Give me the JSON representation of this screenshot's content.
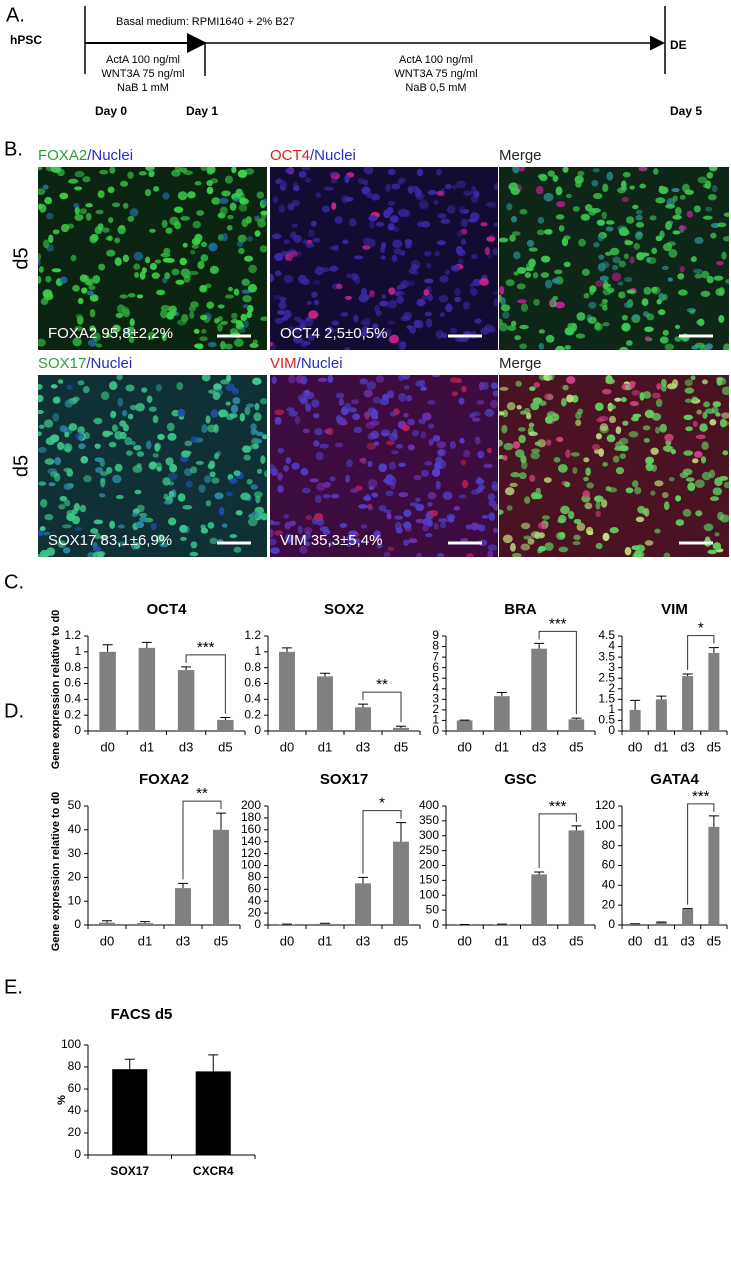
{
  "panel_a": {
    "label": "A.",
    "start": "hPSC",
    "end": "DE",
    "medium": "Basal medium: RPMI1640 + 2% B27",
    "phase_1": [
      "ActA 100 ng/ml",
      "WNT3A 75 ng/ml",
      "NaB 1 mM"
    ],
    "phase_2": [
      "ActA 100 ng/ml",
      "WNT3A 75 ng/ml",
      "NaB 0,5 mM"
    ],
    "days": [
      "Day 0",
      "Day 1",
      "Day 5"
    ]
  },
  "panel_b": {
    "label": "B.",
    "rows": [
      {
        "row_label": "d5",
        "images": [
          {
            "title": [
              {
                "text": "FOXA2",
                "color": "#2e9e3a"
              },
              {
                "text": "/Nuclei",
                "color": "#2b2bbf"
              }
            ],
            "caption": "FOXA2 95,8±2,2%"
          },
          {
            "title": [
              {
                "text": "OCT4",
                "color": "#e02020"
              },
              {
                "text": "/Nuclei",
                "color": "#2b2bbf"
              }
            ],
            "caption": "OCT4 2,5±0,5%"
          },
          {
            "title": [
              {
                "text": "Merge",
                "color": "#222222"
              }
            ]
          }
        ]
      },
      {
        "row_label": "d5",
        "images": [
          {
            "title": [
              {
                "text": "SOX17",
                "color": "#2e9e3a"
              },
              {
                "text": "/Nuclei",
                "color": "#2b2bbf"
              }
            ],
            "caption": "SOX17 83,1±6,9%"
          },
          {
            "title": [
              {
                "text": "VIM",
                "color": "#e02020"
              },
              {
                "text": "/Nuclei",
                "color": "#2b2bbf"
              }
            ],
            "caption": "VIM 35,3±5,4%"
          },
          {
            "title": [
              {
                "text": "Merge",
                "color": "#222222"
              }
            ]
          }
        ]
      }
    ]
  },
  "panel_labels": {
    "c": "C.",
    "d": "D.",
    "e": "E."
  },
  "chart_data": [
    {
      "type": "bar",
      "title": "OCT4",
      "ylabel": "Gene expression relative to d0",
      "categories": [
        "d0",
        "d1",
        "d3",
        "d5"
      ],
      "values": [
        1.0,
        1.05,
        0.77,
        0.14
      ],
      "errors": [
        0.09,
        0.07,
        0.04,
        0.03
      ],
      "color": "#808080",
      "ylim": [
        0,
        1.2
      ],
      "yticks": [
        0,
        0.2,
        0.4,
        0.6,
        0.8,
        1,
        1.2
      ],
      "annotations": [
        {
          "text": "***",
          "between": [
            "d3",
            "d5"
          ]
        }
      ]
    },
    {
      "type": "bar",
      "title": "SOX2",
      "categories": [
        "d0",
        "d1",
        "d3",
        "d5"
      ],
      "values": [
        1.0,
        0.69,
        0.3,
        0.04
      ],
      "errors": [
        0.05,
        0.04,
        0.04,
        0.02
      ],
      "color": "#808080",
      "ylim": [
        0,
        1.2
      ],
      "yticks": [
        0,
        0.2,
        0.4,
        0.6,
        0.8,
        1,
        1.2
      ],
      "annotations": [
        {
          "text": "**",
          "between": [
            "d3",
            "d5"
          ]
        }
      ]
    },
    {
      "type": "bar",
      "title": "BRA",
      "categories": [
        "d0",
        "d1",
        "d3",
        "d5"
      ],
      "values": [
        1.0,
        3.3,
        7.8,
        1.1
      ],
      "errors": [
        0.03,
        0.35,
        0.5,
        0.12
      ],
      "color": "#808080",
      "ylim": [
        0,
        9
      ],
      "yticks": [
        0,
        1,
        2,
        3,
        4,
        5,
        6,
        7,
        8,
        9
      ],
      "annotations": [
        {
          "text": "***",
          "between": [
            "d3",
            "d5"
          ]
        }
      ]
    },
    {
      "type": "bar",
      "title": "VIM",
      "categories": [
        "d0",
        "d1",
        "d3",
        "d5"
      ],
      "values": [
        1.0,
        1.5,
        2.6,
        3.7
      ],
      "errors": [
        0.45,
        0.15,
        0.1,
        0.25
      ],
      "color": "#808080",
      "ylim": [
        0,
        4.5
      ],
      "yticks": [
        0,
        0.5,
        1,
        1.5,
        2,
        2.5,
        3,
        3.5,
        4,
        4.5
      ],
      "annotations": [
        {
          "text": "*",
          "between": [
            "d3",
            "d5"
          ]
        }
      ]
    },
    {
      "type": "bar",
      "title": "FOXA2",
      "ylabel": "Gene expression relative to d0",
      "categories": [
        "d0",
        "d1",
        "d3",
        "d5"
      ],
      "values": [
        1.0,
        0.8,
        15.5,
        40
      ],
      "errors": [
        0.8,
        0.6,
        2,
        7
      ],
      "color": "#808080",
      "ylim": [
        0,
        50
      ],
      "yticks": [
        0,
        10,
        20,
        30,
        40,
        50
      ],
      "annotations": [
        {
          "text": "**",
          "between": [
            "d3",
            "d5"
          ]
        }
      ]
    },
    {
      "type": "bar",
      "title": "SOX17",
      "categories": [
        "d0",
        "d1",
        "d3",
        "d5"
      ],
      "values": [
        1,
        2,
        70,
        140
      ],
      "errors": [
        0.5,
        1,
        10,
        32
      ],
      "color": "#808080",
      "ylim": [
        0,
        200
      ],
      "yticks": [
        0,
        20,
        40,
        60,
        80,
        100,
        120,
        140,
        160,
        180,
        200
      ],
      "annotations": [
        {
          "text": "*",
          "between": [
            "d3",
            "d5"
          ]
        }
      ]
    },
    {
      "type": "bar",
      "title": "GSC",
      "categories": [
        "d0",
        "d1",
        "d3",
        "d5"
      ],
      "values": [
        1,
        2,
        170,
        318
      ],
      "errors": [
        0.5,
        1,
        8,
        15
      ],
      "color": "#808080",
      "ylim": [
        0,
        400
      ],
      "yticks": [
        0,
        50,
        100,
        150,
        200,
        250,
        300,
        350,
        400
      ],
      "annotations": [
        {
          "text": "***",
          "between": [
            "d3",
            "d5"
          ]
        }
      ]
    },
    {
      "type": "bar",
      "title": "GATA4",
      "categories": [
        "d0",
        "d1",
        "d3",
        "d5"
      ],
      "values": [
        1,
        2.5,
        16,
        99
      ],
      "errors": [
        0.3,
        0.5,
        0.5,
        11
      ],
      "color": "#808080",
      "ylim": [
        0,
        120
      ],
      "yticks": [
        0,
        20,
        40,
        60,
        80,
        100,
        120
      ],
      "annotations": [
        {
          "text": "***",
          "between": [
            "d3",
            "d5"
          ]
        }
      ]
    },
    {
      "type": "bar",
      "title": "FACS d5",
      "ylabel": "%",
      "categories": [
        "SOX17",
        "CXCR4"
      ],
      "values": [
        78,
        76
      ],
      "errors": [
        9,
        15
      ],
      "color": "#000000",
      "ylim": [
        0,
        100
      ],
      "yticks": [
        0,
        20,
        40,
        60,
        80,
        100
      ]
    }
  ]
}
